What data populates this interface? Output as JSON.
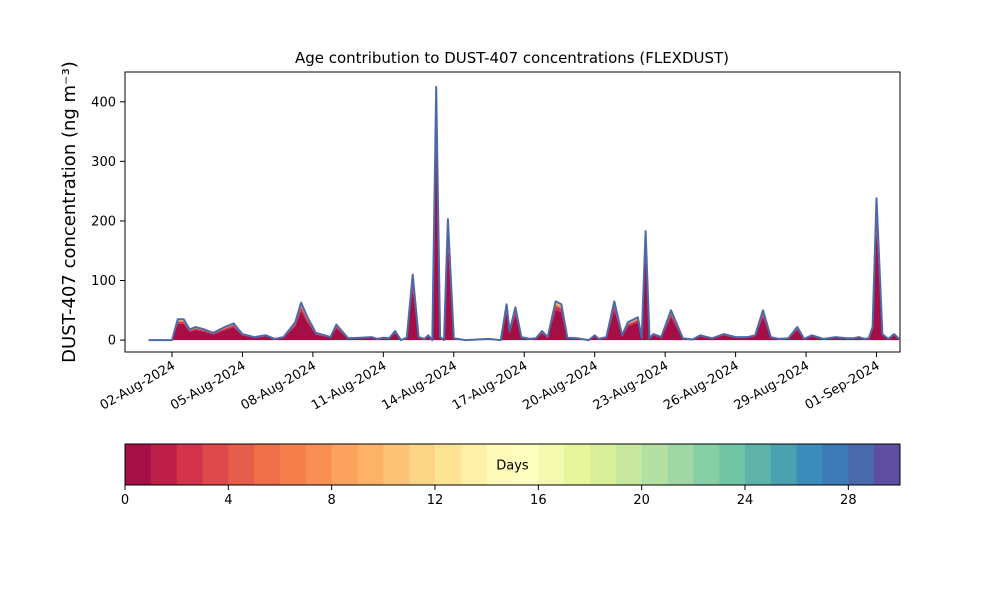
{
  "chart_data": {
    "type": "area",
    "title": "Age contribution to DUST-407 concentrations (FLEXDUST)",
    "ylabel": "DUST-407 concentration (ng m⁻³)",
    "xlabel": "",
    "x_range": [
      "2024-07-31",
      "2024-09-02"
    ],
    "ylim": [
      -20,
      450
    ],
    "y_ticks": [
      0,
      100,
      200,
      300,
      400
    ],
    "x_tick_labels": [
      "02-Aug-2024",
      "05-Aug-2024",
      "08-Aug-2024",
      "11-Aug-2024",
      "14-Aug-2024",
      "17-Aug-2024",
      "20-Aug-2024",
      "23-Aug-2024",
      "26-Aug-2024",
      "29-Aug-2024",
      "01-Sep-2024"
    ],
    "x_tick_dates": [
      "2024-08-02",
      "2024-08-05",
      "2024-08-08",
      "2024-08-11",
      "2024-08-14",
      "2024-08-17",
      "2024-08-20",
      "2024-08-23",
      "2024-08-26",
      "2024-08-29",
      "2024-09-01"
    ],
    "total_line_color": "#4a6aaa",
    "series_total": {
      "x": [
        "2024-08-01 00:00",
        "2024-08-01 12:00",
        "2024-08-02 00:00",
        "2024-08-02 06:00",
        "2024-08-02 12:00",
        "2024-08-02 18:00",
        "2024-08-03 00:00",
        "2024-08-03 09:00",
        "2024-08-03 18:00",
        "2024-08-04 06:00",
        "2024-08-04 15:00",
        "2024-08-05 00:00",
        "2024-08-05 12:00",
        "2024-08-06 00:00",
        "2024-08-06 09:00",
        "2024-08-06 18:00",
        "2024-08-07 06:00",
        "2024-08-07 12:00",
        "2024-08-07 18:00",
        "2024-08-08 03:00",
        "2024-08-08 12:00",
        "2024-08-08 18:00",
        "2024-08-09 00:00",
        "2024-08-09 12:00",
        "2024-08-10 00:00",
        "2024-08-10 12:00",
        "2024-08-10 18:00",
        "2024-08-11 00:00",
        "2024-08-11 06:00",
        "2024-08-11 12:00",
        "2024-08-11 18:00",
        "2024-08-12 00:00",
        "2024-08-12 06:00",
        "2024-08-12 12:00",
        "2024-08-12 18:00",
        "2024-08-12 22:00",
        "2024-08-13 02:00",
        "2024-08-13 06:00",
        "2024-08-13 10:00",
        "2024-08-13 14:00",
        "2024-08-13 18:00",
        "2024-08-14 00:00",
        "2024-08-14 12:00",
        "2024-08-15 00:00",
        "2024-08-15 12:00",
        "2024-08-16 00:00",
        "2024-08-16 06:00",
        "2024-08-16 09:00",
        "2024-08-16 15:00",
        "2024-08-16 21:00",
        "2024-08-17 06:00",
        "2024-08-17 12:00",
        "2024-08-17 18:00",
        "2024-08-18 00:00",
        "2024-08-18 08:00",
        "2024-08-18 14:00",
        "2024-08-18 20:00",
        "2024-08-19 06:00",
        "2024-08-19 18:00",
        "2024-08-20 00:00",
        "2024-08-20 04:00",
        "2024-08-20 12:00",
        "2024-08-20 20:00",
        "2024-08-21 04:00",
        "2024-08-21 10:00",
        "2024-08-21 20:00",
        "2024-08-22 00:00",
        "2024-08-22 04:00",
        "2024-08-22 08:00",
        "2024-08-22 12:00",
        "2024-08-22 20:00",
        "2024-08-23 06:00",
        "2024-08-23 18:00",
        "2024-08-24 04:00",
        "2024-08-24 12:00",
        "2024-08-25 00:00",
        "2024-08-25 12:00",
        "2024-08-26 00:00",
        "2024-08-26 12:00",
        "2024-08-26 20:00",
        "2024-08-27 04:00",
        "2024-08-27 12:00",
        "2024-08-27 20:00",
        "2024-08-28 06:00",
        "2024-08-28 15:00",
        "2024-08-28 22:00",
        "2024-08-29 06:00",
        "2024-08-29 18:00",
        "2024-08-30 06:00",
        "2024-08-30 18:00",
        "2024-08-31 00:00",
        "2024-08-31 06:00",
        "2024-08-31 12:00",
        "2024-08-31 16:00",
        "2024-08-31 20:00",
        "2024-09-01 00:00",
        "2024-09-01 06:00",
        "2024-09-01 12:00",
        "2024-09-01 18:00",
        "2024-09-01 23:00"
      ],
      "y": [
        0,
        0,
        0,
        35,
        35,
        18,
        22,
        18,
        12,
        22,
        28,
        10,
        5,
        8,
        2,
        5,
        30,
        63,
        40,
        12,
        8,
        5,
        26,
        3,
        4,
        5,
        2,
        4,
        3,
        15,
        0,
        4,
        110,
        5,
        2,
        8,
        0,
        425,
        5,
        0,
        203,
        3,
        0,
        1,
        2,
        0,
        60,
        15,
        55,
        5,
        2,
        3,
        15,
        5,
        65,
        60,
        4,
        3,
        0,
        8,
        2,
        5,
        65,
        8,
        30,
        38,
        4,
        183,
        3,
        10,
        5,
        50,
        3,
        1,
        8,
        3,
        10,
        5,
        5,
        8,
        50,
        5,
        2,
        3,
        22,
        2,
        8,
        2,
        5,
        3,
        3,
        5,
        2,
        3,
        22,
        238,
        10,
        2,
        10,
        2
      ]
    },
    "age_bins": {
      "unit": "Days",
      "boundaries": [
        0,
        1,
        2,
        3,
        4,
        5,
        6,
        7,
        8,
        9,
        10,
        11,
        12,
        13,
        14,
        15,
        16,
        17,
        18,
        19,
        20,
        21,
        22,
        23,
        24,
        25,
        26,
        27,
        28,
        29,
        30
      ],
      "ticks": [
        0,
        4,
        8,
        12,
        16,
        20,
        24,
        28
      ],
      "colors": [
        "#a50f45",
        "#be1f48",
        "#d2334b",
        "#df484a",
        "#e75d4c",
        "#f06e48",
        "#f67e4b",
        "#f98f53",
        "#fca15e",
        "#fdb267",
        "#fec374",
        "#fdd485",
        "#fee394",
        "#fef0a6",
        "#fff9b7",
        "#fefebe",
        "#f3faad",
        "#e7f59b",
        "#d9ef9a",
        "#c8e89e",
        "#b4e0a2",
        "#9fd8a4",
        "#86cea4",
        "#70c5a4",
        "#5db3a9",
        "#4aa1b0",
        "#3a8dba",
        "#3c7bb8",
        "#4a69ad",
        "#5e4fa2"
      ]
    }
  }
}
